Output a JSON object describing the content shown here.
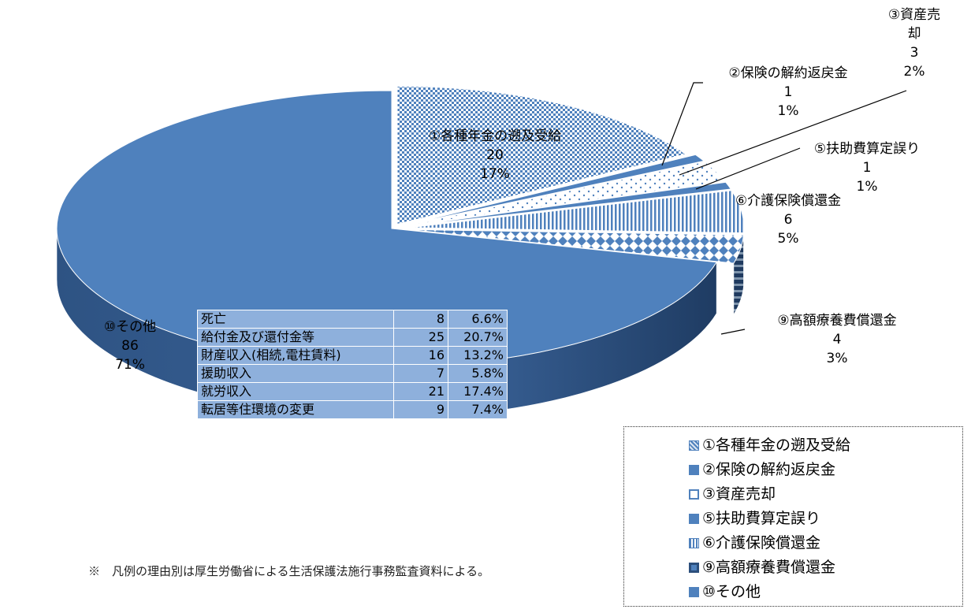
{
  "chart_data": {
    "type": "pie",
    "style": "3D exploded pie",
    "slices": [
      {
        "label": "①各種年金の遡及受給",
        "value": 20,
        "percent": "17%",
        "pattern": "dense-check",
        "color": "#4f81bd"
      },
      {
        "label": "②保険の解約返戻金",
        "value": 1,
        "percent": "1%",
        "pattern": "solid",
        "color": "#4f81bd"
      },
      {
        "label": "③資産売却",
        "value": 3,
        "percent": "2%",
        "pattern": "sparse-dots",
        "color": "#4f81bd"
      },
      {
        "label": "⑤扶助費算定誤り",
        "value": 1,
        "percent": "1%",
        "pattern": "solid",
        "color": "#4f81bd"
      },
      {
        "label": "⑥介護保険償還金",
        "value": 6,
        "percent": "5%",
        "pattern": "vertical-lines",
        "color": "#4f81bd"
      },
      {
        "label": "⑨高額療養費償還金",
        "value": 4,
        "percent": "3%",
        "pattern": "diamond-check",
        "color": "#4f81bd"
      },
      {
        "label": "⑩その他",
        "value": 86,
        "percent": "71%",
        "pattern": "solid",
        "color": "#4f81bd"
      }
    ],
    "legend_position": "bottom-right",
    "breakdown": {
      "parent": "⑩その他",
      "rows": [
        {
          "category": "死亡",
          "count": "8",
          "percent": "6.6%"
        },
        {
          "category": "給付金及び還付金等",
          "count": "25",
          "percent": "20.7%"
        },
        {
          "category": "財産収入(相続,電柱賃料)",
          "count": "16",
          "percent": "13.2%"
        },
        {
          "category": "援助収入",
          "count": "7",
          "percent": "5.8%"
        },
        {
          "category": "就労収入",
          "count": "21",
          "percent": "17.4%"
        },
        {
          "category": "転居等住環境の変更",
          "count": "9",
          "percent": "7.4%"
        }
      ]
    }
  },
  "footnote": "※　凡例の理由別は厚生労働省による生活保護法施行事務監査資料による。"
}
